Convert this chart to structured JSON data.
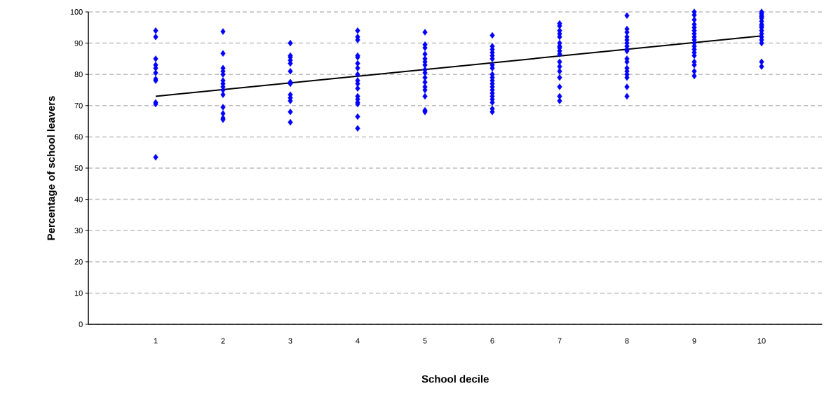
{
  "chart_data": {
    "type": "scatter",
    "xlabel": "School decile",
    "ylabel": "Percentage of school leavers",
    "xlim": [
      0,
      10.9
    ],
    "xticks": [
      1,
      2,
      3,
      4,
      5,
      6,
      7,
      8,
      9,
      10
    ],
    "ylim": [
      0,
      100
    ],
    "yticks": [
      0,
      10,
      20,
      30,
      40,
      50,
      60,
      70,
      80,
      90,
      100
    ],
    "grid": "y",
    "marker": "diamond",
    "series": [
      {
        "type": "scatter",
        "color": "#0000ff",
        "x": [
          1,
          1,
          1,
          1,
          1,
          1,
          1,
          1,
          1,
          1,
          1,
          2,
          2,
          2,
          2,
          2,
          2,
          2,
          2,
          2,
          2,
          2,
          2,
          2,
          2,
          3,
          3,
          3,
          3,
          3,
          3,
          3,
          3,
          3,
          3,
          3,
          3,
          3,
          4,
          4,
          4,
          4,
          4,
          4,
          4,
          4,
          4,
          4,
          4,
          4,
          4,
          4,
          4,
          4,
          4,
          5,
          5,
          5,
          5,
          5,
          5,
          5,
          5,
          5,
          5,
          5,
          5,
          5,
          5,
          5,
          5,
          6,
          6,
          6,
          6,
          6,
          6,
          6,
          6,
          6,
          6,
          6,
          6,
          6,
          6,
          6,
          6,
          6,
          6,
          6,
          6,
          7,
          7,
          7,
          7,
          7,
          7,
          7,
          7,
          7,
          7,
          7,
          7,
          7,
          7,
          7,
          7,
          7,
          8,
          8,
          8,
          8,
          8,
          8,
          8,
          8,
          8,
          8,
          8,
          8,
          8,
          8,
          8,
          8,
          8,
          9,
          9,
          9,
          9,
          9,
          9,
          9,
          9,
          9,
          9,
          9,
          9,
          9,
          9,
          9,
          9,
          9,
          9,
          10,
          10,
          10,
          10,
          10,
          10,
          10,
          10,
          10,
          10,
          10,
          10,
          10,
          10,
          10,
          10
        ],
        "values": [
          94,
          92,
          85,
          83,
          82,
          80.5,
          78.5,
          78,
          71,
          70.5,
          53.5,
          93.7,
          86.7,
          82,
          81,
          80,
          78,
          77,
          76,
          75,
          73.5,
          69.5,
          67.5,
          66,
          65.5,
          90,
          86,
          85.5,
          84.5,
          83.5,
          81,
          77.5,
          77,
          73.5,
          72.5,
          71.5,
          68,
          64.7,
          94,
          92,
          91,
          86,
          85.5,
          83.5,
          82,
          80,
          78,
          77,
          75.5,
          73,
          72,
          71,
          70.5,
          66.5,
          62.7,
          93.5,
          89.5,
          88.5,
          86.5,
          85,
          84,
          83,
          81.5,
          80.5,
          79,
          77.5,
          76,
          75,
          73,
          68.5,
          68,
          92.5,
          89,
          88,
          87,
          86,
          85,
          83,
          82,
          80,
          79,
          78,
          77,
          76,
          75,
          74,
          73,
          72,
          71,
          69,
          68,
          96.3,
          95.5,
          94,
          93,
          92,
          90,
          89,
          88.5,
          87.5,
          86.5,
          84,
          82.5,
          81,
          79,
          76,
          73,
          71.5,
          98.8,
          94.5,
          93.5,
          92,
          91,
          90,
          89,
          88,
          87.5,
          85,
          84,
          82,
          81,
          80,
          79,
          76,
          73,
          100,
          99,
          97.5,
          96,
          95,
          94,
          93,
          92,
          91,
          90,
          89,
          88,
          87,
          86,
          84,
          83,
          81,
          79.5,
          100,
          99.5,
          99,
          98.5,
          98,
          97,
          96,
          95.5,
          95,
          94,
          93,
          92,
          91,
          90,
          84,
          82.5
        ]
      },
      {
        "type": "line",
        "color": "#000000",
        "marker": "none",
        "x": [
          1,
          10
        ],
        "values": [
          73,
          92.3
        ]
      }
    ]
  }
}
